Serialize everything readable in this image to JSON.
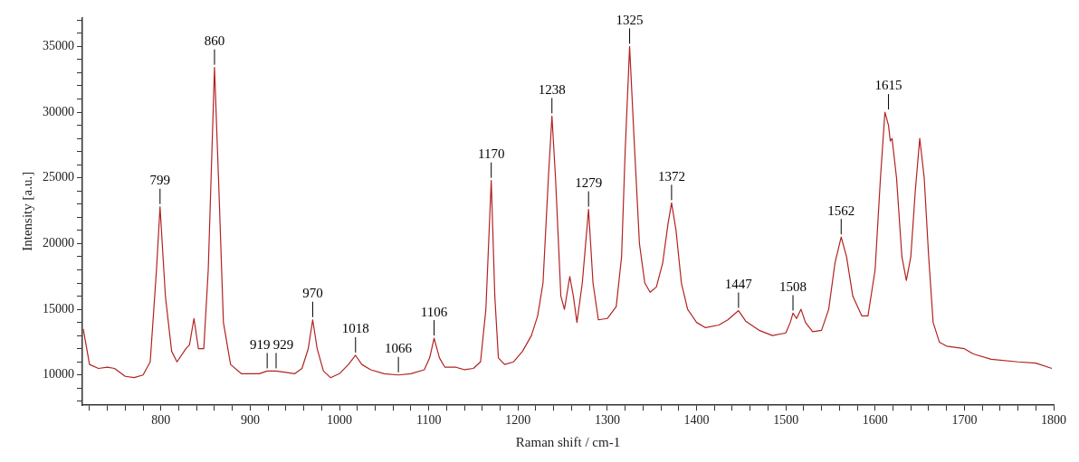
{
  "chart_data": {
    "type": "line",
    "xlabel": "Raman shift / cm-1",
    "ylabel": "Intensity [a.u.]",
    "marker": "none",
    "line_style": "solid",
    "grid": false,
    "legend": false,
    "xlim": [
      712,
      1800
    ],
    "ylim": [
      7700,
      37200
    ],
    "xticks": [
      {
        "value": 720,
        "label": null
      },
      {
        "value": 740,
        "label": null
      },
      {
        "value": 760,
        "label": null
      },
      {
        "value": 780,
        "label": null
      },
      800,
      {
        "value": 820,
        "label": null
      },
      {
        "value": 840,
        "label": null
      },
      {
        "value": 860,
        "label": null
      },
      {
        "value": 880,
        "label": null
      },
      900,
      {
        "value": 920,
        "label": null
      },
      {
        "value": 940,
        "label": null
      },
      {
        "value": 960,
        "label": null
      },
      {
        "value": 980,
        "label": null
      },
      1000,
      {
        "value": 1020,
        "label": null
      },
      {
        "value": 1040,
        "label": null
      },
      {
        "value": 1060,
        "label": null
      },
      {
        "value": 1080,
        "label": null
      },
      1100,
      {
        "value": 1120,
        "label": null
      },
      {
        "value": 1140,
        "label": null
      },
      {
        "value": 1160,
        "label": null
      },
      {
        "value": 1180,
        "label": null
      },
      1200,
      {
        "value": 1220,
        "label": null
      },
      {
        "value": 1240,
        "label": null
      },
      {
        "value": 1260,
        "label": null
      },
      {
        "value": 1280,
        "label": null
      },
      1300,
      {
        "value": 1320,
        "label": null
      },
      {
        "value": 1340,
        "label": null
      },
      {
        "value": 1360,
        "label": null
      },
      {
        "value": 1380,
        "label": null
      },
      1400,
      {
        "value": 1420,
        "label": null
      },
      {
        "value": 1440,
        "label": null
      },
      {
        "value": 1460,
        "label": null
      },
      {
        "value": 1480,
        "label": null
      },
      1500,
      {
        "value": 1520,
        "label": null
      },
      {
        "value": 1540,
        "label": null
      },
      {
        "value": 1560,
        "label": null
      },
      {
        "value": 1580,
        "label": null
      },
      1600,
      {
        "value": 1620,
        "label": null
      },
      {
        "value": 1640,
        "label": null
      },
      {
        "value": 1660,
        "label": null
      },
      {
        "value": 1680,
        "label": null
      },
      1700,
      {
        "value": 1720,
        "label": null
      },
      {
        "value": 1740,
        "label": null
      },
      {
        "value": 1760,
        "label": null
      },
      {
        "value": 1780,
        "label": null
      },
      1800
    ],
    "yticks": [
      {
        "value": 8000,
        "label": null
      },
      {
        "value": 9000,
        "label": null
      },
      10000,
      {
        "value": 11000,
        "label": null
      },
      {
        "value": 12000,
        "label": null
      },
      {
        "value": 13000,
        "label": null
      },
      {
        "value": 14000,
        "label": null
      },
      15000,
      {
        "value": 16000,
        "label": null
      },
      {
        "value": 17000,
        "label": null
      },
      {
        "value": 18000,
        "label": null
      },
      {
        "value": 19000,
        "label": null
      },
      20000,
      {
        "value": 21000,
        "label": null
      },
      {
        "value": 22000,
        "label": null
      },
      {
        "value": 23000,
        "label": null
      },
      {
        "value": 24000,
        "label": null
      },
      25000,
      {
        "value": 26000,
        "label": null
      },
      {
        "value": 27000,
        "label": null
      },
      {
        "value": 28000,
        "label": null
      },
      {
        "value": 29000,
        "label": null
      },
      30000,
      {
        "value": 31000,
        "label": null
      },
      {
        "value": 32000,
        "label": null
      },
      {
        "value": 33000,
        "label": null
      },
      {
        "value": 34000,
        "label": null
      },
      35000,
      {
        "value": 36000,
        "label": null
      },
      {
        "value": 37000,
        "label": null
      }
    ],
    "x": [
      713,
      720,
      730,
      740,
      748,
      760,
      770,
      780,
      788,
      795,
      799,
      805,
      812,
      818,
      828,
      832,
      837,
      842,
      848,
      853,
      860,
      865,
      870,
      878,
      890,
      910,
      919,
      929,
      940,
      950,
      958,
      965,
      970,
      975,
      982,
      990,
      1000,
      1010,
      1018,
      1025,
      1035,
      1050,
      1066,
      1080,
      1095,
      1101,
      1106,
      1112,
      1118,
      1130,
      1140,
      1150,
      1158,
      1164,
      1170,
      1174,
      1178,
      1185,
      1195,
      1205,
      1215,
      1222,
      1228,
      1234,
      1238,
      1242,
      1248,
      1252,
      1258,
      1262,
      1266,
      1272,
      1279,
      1284,
      1290,
      1300,
      1310,
      1316,
      1320,
      1325,
      1330,
      1336,
      1342,
      1348,
      1355,
      1362,
      1368,
      1372,
      1377,
      1383,
      1390,
      1400,
      1410,
      1425,
      1435,
      1447,
      1455,
      1470,
      1485,
      1500,
      1505,
      1508,
      1512,
      1517,
      1522,
      1530,
      1540,
      1548,
      1555,
      1562,
      1568,
      1575,
      1585,
      1592,
      1600,
      1606,
      1611,
      1615,
      1617,
      1619,
      1624,
      1630,
      1635,
      1640,
      1645,
      1650,
      1655,
      1660,
      1665,
      1672,
      1680,
      1700,
      1710,
      1730,
      1760,
      1780,
      1798
    ],
    "series": [
      {
        "color": "#b22222",
        "values": [
          13500,
          10800,
          10500,
          10600,
          10500,
          9900,
          9800,
          10000,
          11000,
          18000,
          22800,
          16000,
          11800,
          11000,
          12000,
          12300,
          14300,
          12000,
          12000,
          18000,
          33400,
          24000,
          14000,
          10800,
          10100,
          10100,
          10300,
          10300,
          10200,
          10100,
          10500,
          12000,
          14200,
          12000,
          10300,
          9800,
          10100,
          10800,
          11500,
          10800,
          10400,
          10100,
          10000,
          10100,
          10400,
          11300,
          12800,
          11300,
          10600,
          10600,
          10400,
          10500,
          11000,
          15000,
          24800,
          16000,
          11300,
          10800,
          11000,
          11800,
          13000,
          14500,
          17000,
          25000,
          29700,
          25000,
          16000,
          15000,
          17500,
          16000,
          14000,
          17000,
          22600,
          17000,
          14200,
          14300,
          15200,
          19000,
          27000,
          35000,
          28000,
          20000,
          17000,
          16300,
          16700,
          18500,
          21500,
          23100,
          21000,
          17000,
          15000,
          14000,
          13600,
          13800,
          14200,
          14900,
          14100,
          13400,
          13000,
          13200,
          14000,
          14700,
          14300,
          15000,
          14000,
          13300,
          13400,
          15000,
          18500,
          20500,
          19000,
          16000,
          14500,
          14500,
          18000,
          25000,
          30000,
          29000,
          27800,
          28000,
          25000,
          19000,
          17200,
          19000,
          24000,
          28000,
          25000,
          19000,
          14000,
          12500,
          12200,
          12000,
          11600,
          11200,
          11000,
          10900,
          10500
        ]
      }
    ],
    "annotations": [
      {
        "text": "799",
        "x": 799,
        "y": 22800
      },
      {
        "text": "860",
        "x": 860,
        "y": 33400
      },
      {
        "text": "919",
        "x": 919,
        "y": 10300
      },
      {
        "text": "929",
        "x": 929,
        "y": 10300
      },
      {
        "text": "970",
        "x": 970,
        "y": 14200
      },
      {
        "text": "1018",
        "x": 1018,
        "y": 11500
      },
      {
        "text": "1066",
        "x": 1066,
        "y": 10000
      },
      {
        "text": "1106",
        "x": 1106,
        "y": 12800
      },
      {
        "text": "1170",
        "x": 1170,
        "y": 24800
      },
      {
        "text": "1238",
        "x": 1238,
        "y": 29700
      },
      {
        "text": "1279",
        "x": 1279,
        "y": 22600
      },
      {
        "text": "1325",
        "x": 1325,
        "y": 35000
      },
      {
        "text": "1372",
        "x": 1372,
        "y": 23100
      },
      {
        "text": "1447",
        "x": 1447,
        "y": 14900
      },
      {
        "text": "1508",
        "x": 1508,
        "y": 14700
      },
      {
        "text": "1562",
        "x": 1562,
        "y": 20500
      },
      {
        "text": "1615",
        "x": 1615,
        "y": 30000
      }
    ]
  }
}
